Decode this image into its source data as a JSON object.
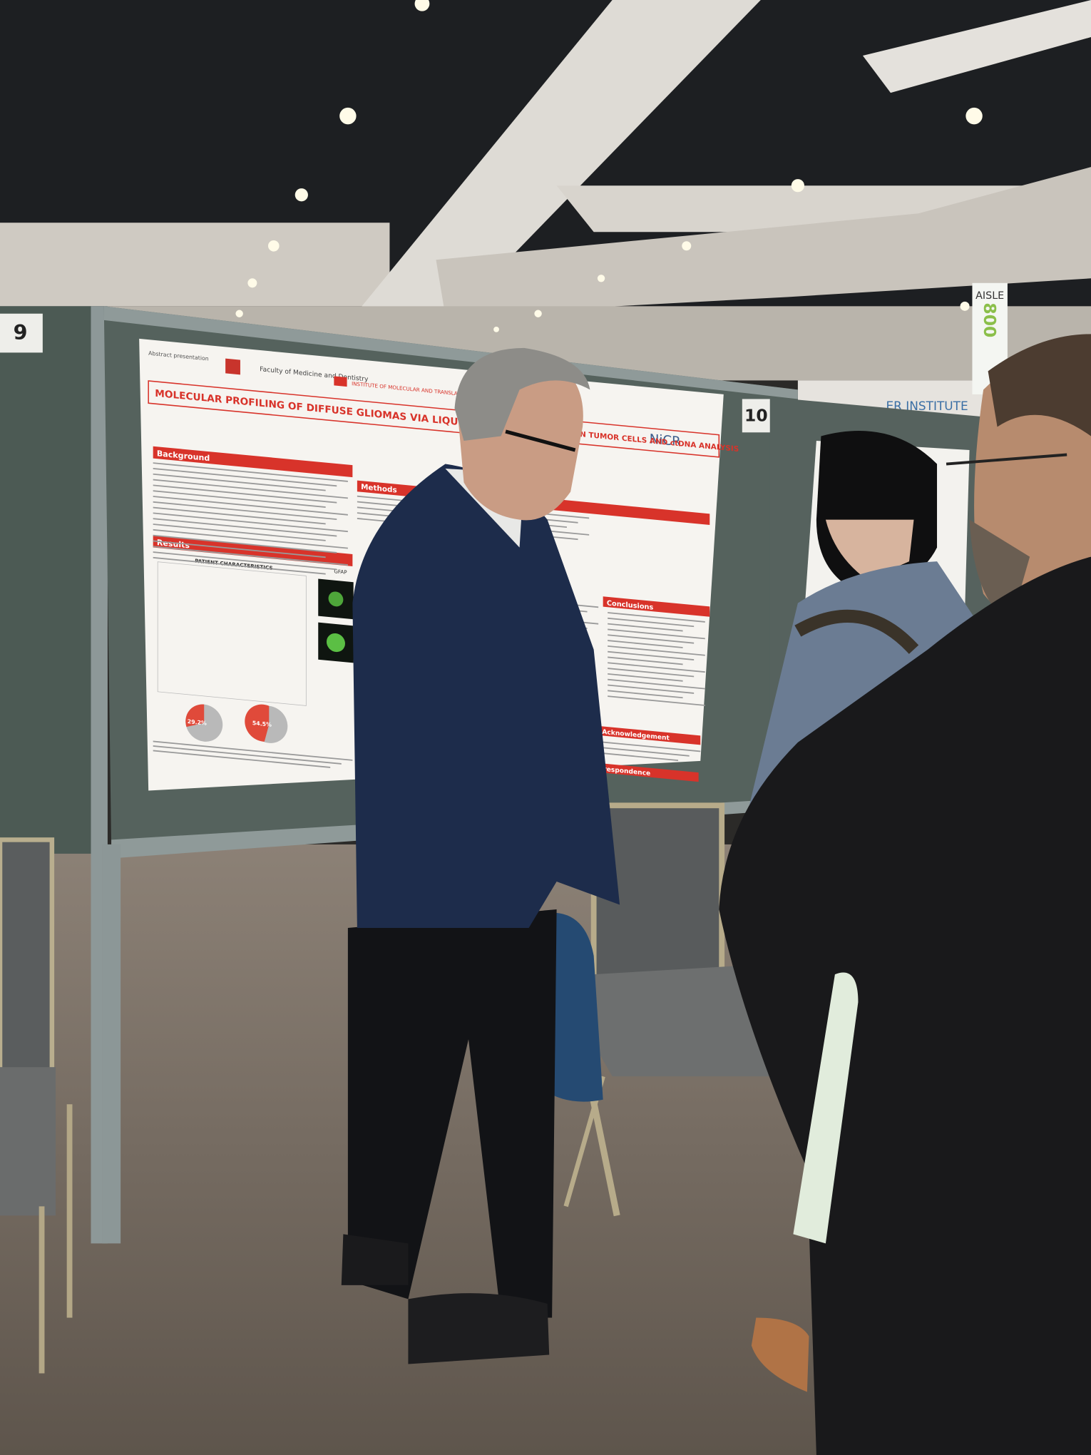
{
  "boards": {
    "left_number": "9",
    "center_number": "10"
  },
  "aisle_sign": {
    "label": "AISLE",
    "number": "800"
  },
  "banner": "ER INSTITUTE",
  "poster": {
    "faculty": "Faculty of Medicine and Dentistry",
    "institute": "INSTITUTE OF MOLECULAR AND TRANSLATIONAL MEDICINE",
    "logo": "NiCR",
    "title_left": "MOLECULAR PROFILING OF DIFFUSE GLIOMAS VIA LIQUID BIO",
    "title_right": "N TUMOR CELLS AND ctDNA ANALYSIS",
    "sections": [
      "Background",
      "Methods",
      "Results",
      "Conclusions",
      "Acknowledgement",
      "rrespondence"
    ],
    "table_title": "PATIENT CHARACTERISTICS",
    "figure_label": "GFAP",
    "pie_labels": [
      "29.2%",
      "54.5%"
    ]
  }
}
